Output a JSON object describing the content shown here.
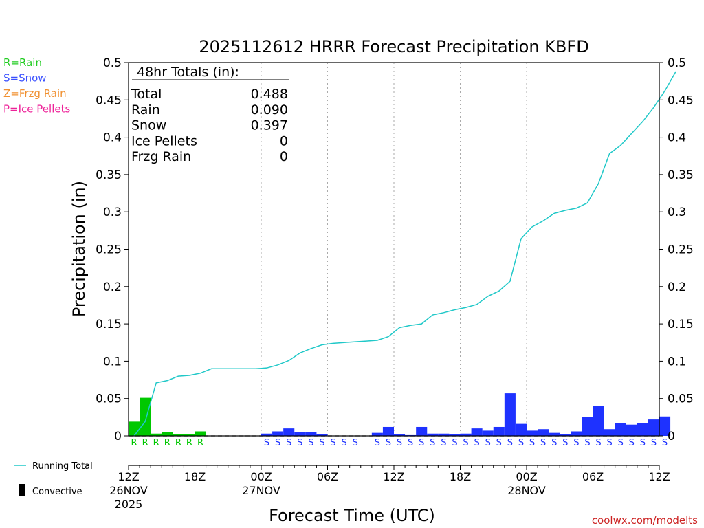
{
  "title": "2025112612 HRRR Forecast Precipitation KBFD",
  "legend_types": [
    {
      "label": "R=Rain",
      "color": "#22cc22"
    },
    {
      "label": "S=Snow",
      "color": "#3a50ff"
    },
    {
      "label": "Z=Frzg Rain",
      "color": "#f09030"
    },
    {
      "label": "P=Ice Pellets",
      "color": "#ee2299"
    }
  ],
  "totals": {
    "heading": "48hr Totals (in):",
    "rows": [
      {
        "label": "Total",
        "value": "0.488"
      },
      {
        "label": "Rain",
        "value": "0.090"
      },
      {
        "label": "Snow",
        "value": "0.397"
      },
      {
        "label": "Ice Pellets",
        "value": "0"
      },
      {
        "label": "Frzg Rain",
        "value": "0"
      }
    ]
  },
  "bottom_legend": {
    "running_total": "Running Total",
    "convective": "Convective"
  },
  "credit": "coolwx.com/modelts",
  "colors": {
    "rain": "#00c800",
    "snow": "#1e32ff",
    "running_total": "#20c8c8",
    "grid": "#aaaaaa"
  },
  "chart_data": {
    "type": "bar",
    "title": "2025112612 HRRR Forecast Precipitation KBFD",
    "xlabel": "Forecast Time (UTC)",
    "ylabel": "Precipitation (in)",
    "ylim": [
      0,
      0.5
    ],
    "xlim_hours": [
      0,
      48
    ],
    "yticks": [
      "0",
      "0.05",
      "0.1",
      "0.15",
      "0.2",
      "0.25",
      "0.3",
      "0.35",
      "0.4",
      "0.45",
      "0.5"
    ],
    "xticks": [
      {
        "hour": 0,
        "label": "12Z",
        "date": "26NOV",
        "year": "2025"
      },
      {
        "hour": 6,
        "label": "18Z",
        "date": "",
        "year": ""
      },
      {
        "hour": 12,
        "label": "00Z",
        "date": "27NOV",
        "year": ""
      },
      {
        "hour": 18,
        "label": "06Z",
        "date": "",
        "year": ""
      },
      {
        "hour": 24,
        "label": "12Z",
        "date": "",
        "year": ""
      },
      {
        "hour": 30,
        "label": "18Z",
        "date": "",
        "year": ""
      },
      {
        "hour": 36,
        "label": "00Z",
        "date": "28NOV",
        "year": ""
      },
      {
        "hour": 42,
        "label": "06Z",
        "date": "",
        "year": ""
      },
      {
        "hour": 48,
        "label": "12Z",
        "date": "",
        "year": ""
      }
    ],
    "hourly_precip": [
      0.019,
      0.051,
      0.003,
      0.005,
      0.002,
      0.002,
      0.006,
      0,
      0,
      0,
      0,
      0,
      0.003,
      0.006,
      0.01,
      0.005,
      0.005,
      0.002,
      0,
      0,
      0,
      0,
      0.004,
      0.012,
      0.002,
      0.001,
      0.012,
      0.003,
      0.003,
      0.002,
      0.003,
      0.01,
      0.007,
      0.012,
      0.057,
      0.016,
      0.007,
      0.009,
      0.004,
      0.002,
      0.006,
      0.025,
      0.04,
      0.009,
      0.017,
      0.015,
      0.017,
      0.022,
      0.026
    ],
    "precip_type": [
      "R",
      "R",
      "R",
      "R",
      "R",
      "R",
      "R",
      "",
      "",
      "",
      "",
      "",
      "S",
      "S",
      "S",
      "S",
      "S",
      "S",
      "S",
      "S",
      "S",
      "",
      "S",
      "S",
      "S",
      "S",
      "S",
      "S",
      "S",
      "S",
      "S",
      "S",
      "S",
      "S",
      "S",
      "S",
      "S",
      "S",
      "S",
      "S",
      "S",
      "S",
      "S",
      "S",
      "S",
      "S",
      "S",
      "S",
      "S"
    ],
    "running_total": [
      0.0,
      0.019,
      0.071,
      0.074,
      0.08,
      0.081,
      0.084,
      0.09,
      0.09,
      0.09,
      0.09,
      0.09,
      0.091,
      0.095,
      0.101,
      0.111,
      0.117,
      0.122,
      0.124,
      0.125,
      0.126,
      0.127,
      0.128,
      0.133,
      0.145,
      0.148,
      0.15,
      0.162,
      0.165,
      0.169,
      0.172,
      0.176,
      0.187,
      0.194,
      0.207,
      0.264,
      0.28,
      0.288,
      0.298,
      0.302,
      0.305,
      0.312,
      0.338,
      0.378,
      0.389,
      0.405,
      0.421,
      0.44,
      0.462,
      0.488
    ]
  }
}
